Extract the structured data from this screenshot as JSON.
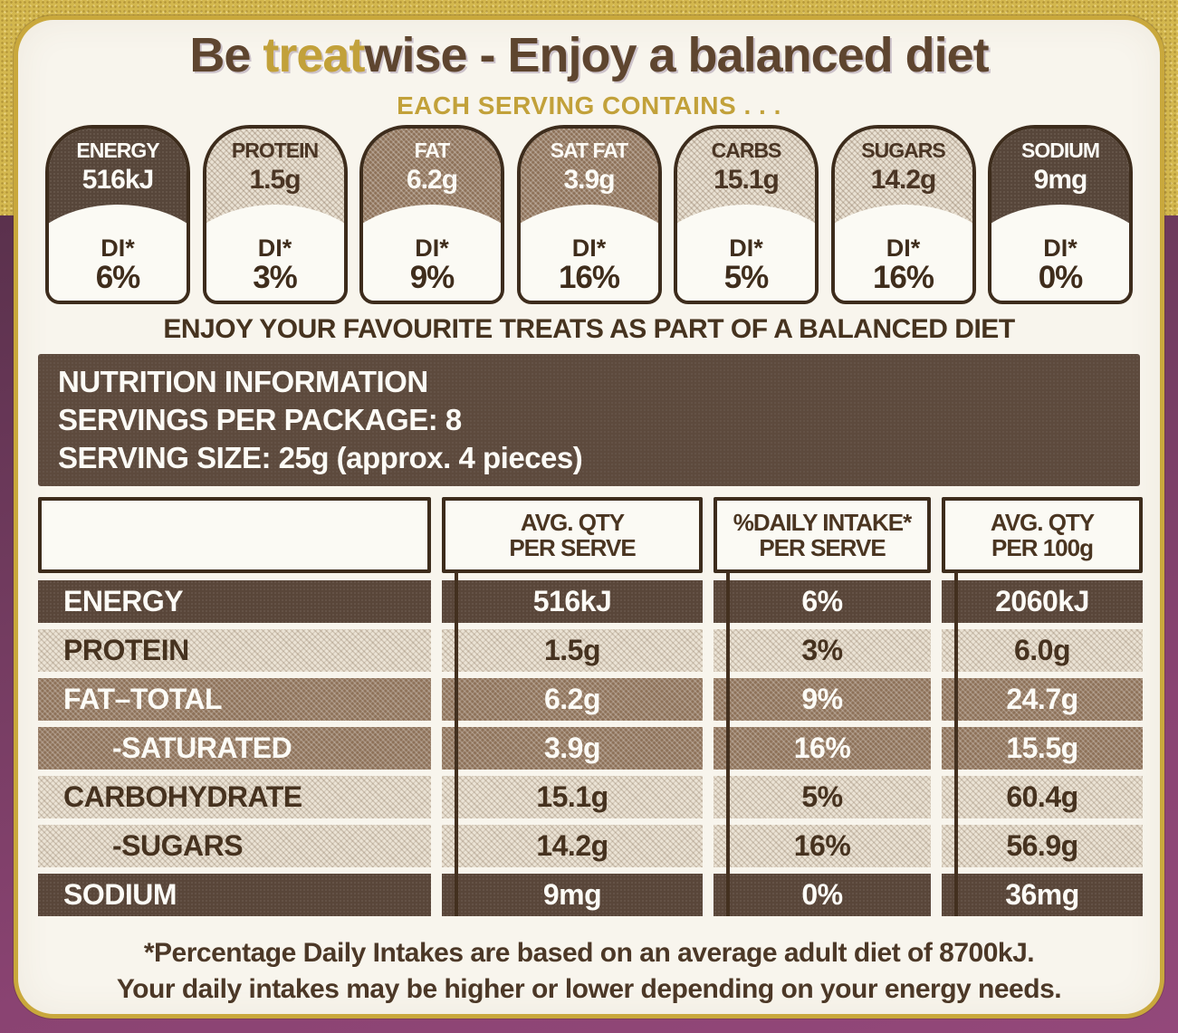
{
  "header": {
    "title_prefix": "Be ",
    "title_highlight": "treat",
    "title_suffix": "wise - Enjoy a balanced diet",
    "subtitle": "EACH SERVING CONTAINS . . ."
  },
  "badges": [
    {
      "name": "ENERGY",
      "value": "516kJ",
      "di_label": "DI*",
      "di_value": "6%",
      "style": "dark"
    },
    {
      "name": "PROTEIN",
      "value": "1.5g",
      "di_label": "DI*",
      "di_value": "3%",
      "style": "light"
    },
    {
      "name": "FAT",
      "value": "6.2g",
      "di_label": "DI*",
      "di_value": "9%",
      "style": "medium"
    },
    {
      "name": "SAT FAT",
      "value": "3.9g",
      "di_label": "DI*",
      "di_value": "16%",
      "style": "medium"
    },
    {
      "name": "CARBS",
      "value": "15.1g",
      "di_label": "DI*",
      "di_value": "5%",
      "style": "light"
    },
    {
      "name": "SUGARS",
      "value": "14.2g",
      "di_label": "DI*",
      "di_value": "16%",
      "style": "light"
    },
    {
      "name": "SODIUM",
      "value": "9mg",
      "di_label": "DI*",
      "di_value": "0%",
      "style": "dark"
    }
  ],
  "tagline": "ENJOY YOUR FAVOURITE TREATS AS PART OF A BALANCED DIET",
  "info_block": {
    "line1": "NUTRITION INFORMATION",
    "line2": "SERVINGS PER PACKAGE: 8",
    "line3": "SERVING SIZE: 25g (approx. 4 pieces)"
  },
  "table": {
    "headers": [
      {
        "top": "AVG. QTY",
        "bottom": "PER SERVE"
      },
      {
        "top": "%DAILY INTAKE*",
        "bottom": "PER SERVE"
      },
      {
        "top": "AVG. QTY",
        "bottom": "PER 100g"
      }
    ],
    "rows": [
      {
        "label": "ENERGY",
        "serve": "516kJ",
        "di": "6%",
        "per100": "2060kJ",
        "style": "dark",
        "indent": false
      },
      {
        "label": "PROTEIN",
        "serve": "1.5g",
        "di": "3%",
        "per100": "6.0g",
        "style": "light",
        "indent": false
      },
      {
        "label": "FAT–TOTAL",
        "serve": "6.2g",
        "di": "9%",
        "per100": "24.7g",
        "style": "medium",
        "indent": false
      },
      {
        "label": "-SATURATED",
        "serve": "3.9g",
        "di": "16%",
        "per100": "15.5g",
        "style": "medium",
        "indent": true
      },
      {
        "label": "CARBOHYDRATE",
        "serve": "15.1g",
        "di": "5%",
        "per100": "60.4g",
        "style": "light",
        "indent": false
      },
      {
        "label": "-SUGARS",
        "serve": "14.2g",
        "di": "16%",
        "per100": "56.9g",
        "style": "light",
        "indent": true
      },
      {
        "label": "SODIUM",
        "serve": "9mg",
        "di": "0%",
        "per100": "36mg",
        "style": "dark",
        "indent": false
      }
    ]
  },
  "footnote": {
    "line1": "*Percentage Daily Intakes are based on an average adult diet of 8700kJ.",
    "line2": "Your daily intakes may be higher or lower depending on your energy needs."
  },
  "colors": {
    "gold_accent": "#c2a13a",
    "gold_band": "#d3b74e",
    "purple_packaging": "#8a4372",
    "dark_brown": "#594639",
    "medium_brown": "#8d7158",
    "light_hatch": "#ebe3d5",
    "ink_brown": "#3d2c1c",
    "card_cream": "#f8f5ed"
  }
}
